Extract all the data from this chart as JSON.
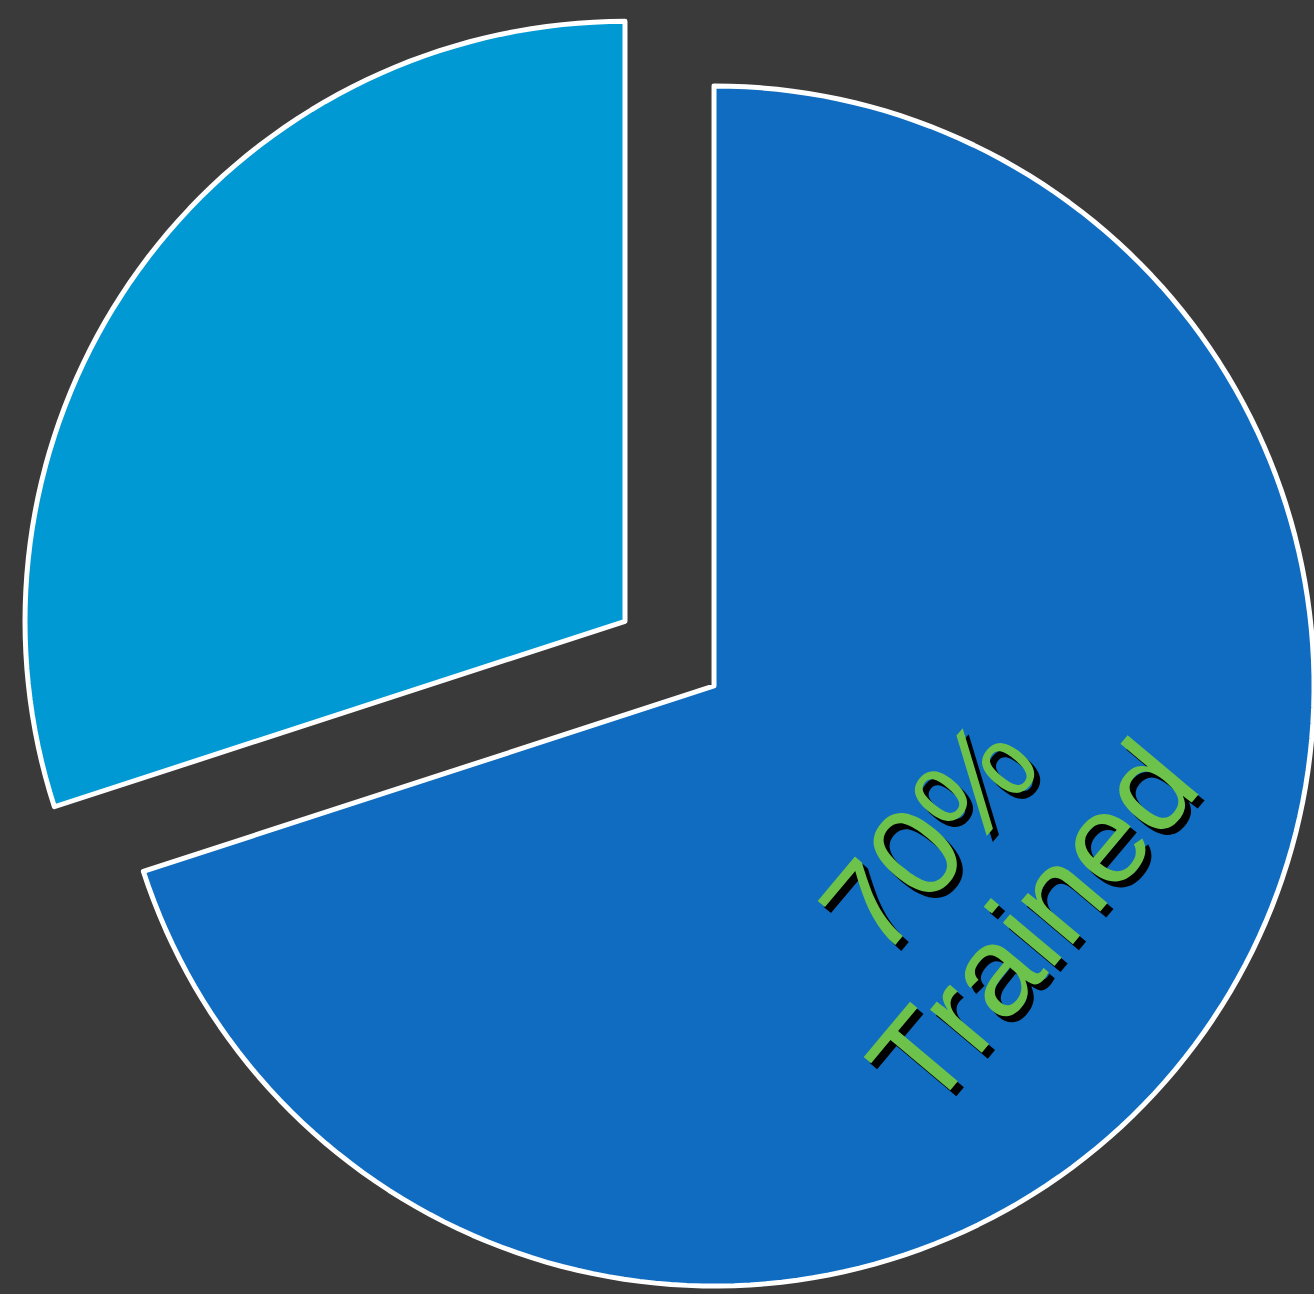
{
  "chart_data": {
    "type": "pie",
    "categories": [
      "Trained",
      null
    ],
    "values": [
      70,
      30
    ],
    "colors": [
      "#0f6cc0",
      "#0099d4"
    ],
    "value_labels": [
      "70%",
      null
    ]
  }
}
